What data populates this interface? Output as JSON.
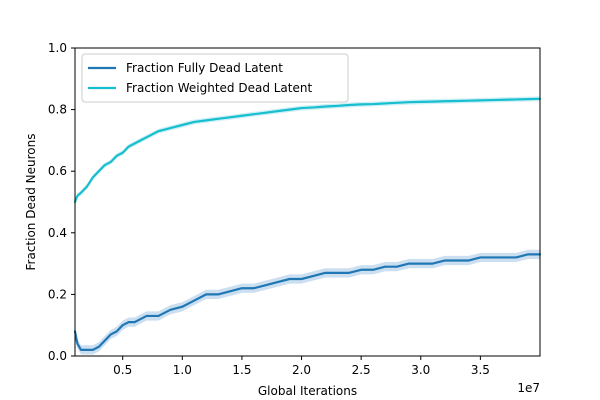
{
  "chart_data": {
    "type": "line",
    "title": "",
    "xlabel": "Global Iterations",
    "ylabel": "Fraction Dead Neurons",
    "x_offset_label": "1e7",
    "xlim": [
      0.1,
      4.0
    ],
    "ylim": [
      0.0,
      1.0
    ],
    "xticks": [
      0.5,
      1.0,
      1.5,
      2.0,
      2.5,
      3.0,
      3.5
    ],
    "xtick_labels": [
      "0.5",
      "1.0",
      "1.5",
      "2.0",
      "2.5",
      "3.0",
      "3.5"
    ],
    "yticks": [
      0.0,
      0.2,
      0.4,
      0.6,
      0.8,
      1.0
    ],
    "ytick_labels": [
      "0.0",
      "0.2",
      "0.4",
      "0.6",
      "0.8",
      "1.0"
    ],
    "grid": false,
    "legend_position": "top-left",
    "series": [
      {
        "name": "Fraction Fully Dead Latent",
        "color": "#1f77b4",
        "band_color": "#c6dbef",
        "x": [
          0.1,
          0.12,
          0.15,
          0.2,
          0.25,
          0.3,
          0.35,
          0.4,
          0.45,
          0.5,
          0.55,
          0.6,
          0.65,
          0.7,
          0.8,
          0.9,
          1.0,
          1.1,
          1.2,
          1.3,
          1.4,
          1.5,
          1.6,
          1.7,
          1.8,
          1.9,
          2.0,
          2.1,
          2.2,
          2.3,
          2.4,
          2.5,
          2.6,
          2.7,
          2.8,
          2.9,
          3.0,
          3.1,
          3.2,
          3.3,
          3.4,
          3.5,
          3.6,
          3.7,
          3.8,
          3.9,
          4.0
        ],
        "y": [
          0.08,
          0.04,
          0.02,
          0.02,
          0.02,
          0.03,
          0.05,
          0.07,
          0.08,
          0.1,
          0.11,
          0.11,
          0.12,
          0.13,
          0.13,
          0.15,
          0.16,
          0.18,
          0.2,
          0.2,
          0.21,
          0.22,
          0.22,
          0.23,
          0.24,
          0.25,
          0.25,
          0.26,
          0.27,
          0.27,
          0.27,
          0.28,
          0.28,
          0.29,
          0.29,
          0.3,
          0.3,
          0.3,
          0.31,
          0.31,
          0.31,
          0.32,
          0.32,
          0.32,
          0.32,
          0.33,
          0.33
        ],
        "band": 0.015
      },
      {
        "name": "Fraction Weighted Dead Latent",
        "color": "#17becf",
        "band_color": "#c9eef3",
        "x": [
          0.1,
          0.12,
          0.15,
          0.2,
          0.25,
          0.3,
          0.35,
          0.4,
          0.45,
          0.5,
          0.55,
          0.6,
          0.65,
          0.7,
          0.8,
          0.9,
          1.0,
          1.1,
          1.2,
          1.3,
          1.4,
          1.5,
          1.6,
          1.7,
          1.8,
          1.9,
          2.0,
          2.1,
          2.2,
          2.3,
          2.4,
          2.5,
          2.6,
          2.7,
          2.8,
          2.9,
          3.0,
          3.1,
          3.2,
          3.3,
          3.4,
          3.5,
          3.6,
          3.7,
          3.8,
          3.9,
          4.0
        ],
        "y": [
          0.5,
          0.52,
          0.53,
          0.55,
          0.58,
          0.6,
          0.62,
          0.63,
          0.65,
          0.66,
          0.68,
          0.69,
          0.7,
          0.71,
          0.73,
          0.74,
          0.75,
          0.76,
          0.765,
          0.77,
          0.775,
          0.78,
          0.785,
          0.79,
          0.795,
          0.8,
          0.805,
          0.807,
          0.81,
          0.812,
          0.815,
          0.817,
          0.818,
          0.82,
          0.822,
          0.824,
          0.825,
          0.826,
          0.827,
          0.828,
          0.829,
          0.83,
          0.831,
          0.832,
          0.833,
          0.834,
          0.835
        ],
        "band": 0.008
      }
    ]
  }
}
